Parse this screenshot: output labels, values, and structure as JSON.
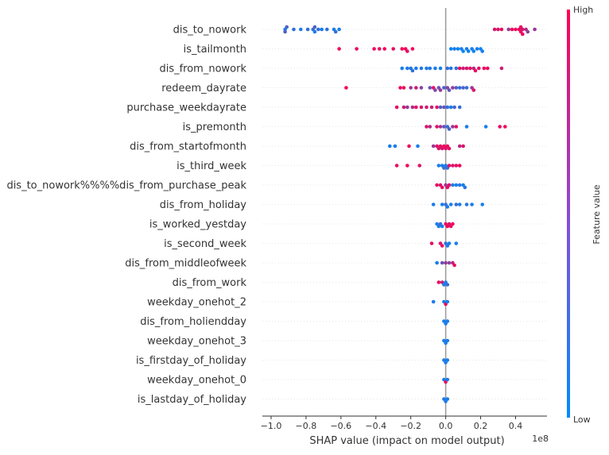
{
  "chart_data": {
    "type": "scatter",
    "subtype": "shap-beeswarm",
    "xlabel": "SHAP value (impact on model output)",
    "x_offset_label": "1e8",
    "xlim": [
      -1.05,
      0.58
    ],
    "x_ticks": [
      {
        "value": -1.0,
        "label": "−1.0"
      },
      {
        "value": -0.8,
        "label": "−0.8"
      },
      {
        "value": -0.6,
        "label": "−0.6"
      },
      {
        "value": -0.4,
        "label": "−0.4"
      },
      {
        "value": -0.2,
        "label": "−0.2"
      },
      {
        "value": 0.0,
        "label": "0.0"
      },
      {
        "value": 0.2,
        "label": "0.2"
      },
      {
        "value": 0.4,
        "label": "0.4"
      }
    ],
    "colorbar": {
      "title": "Feature value",
      "high": "High",
      "low": "Low"
    },
    "colors": {
      "low": "#008bfb",
      "high": "#ff0052",
      "zero_line": "#999999",
      "row_line": "#cccccc"
    },
    "features": [
      {
        "name": "dis_to_nowork",
        "points": [
          [
            -0.92,
            0.1
          ],
          [
            -0.92,
            0.3
          ],
          [
            -0.91,
            0.3
          ],
          [
            -0.87,
            0.2
          ],
          [
            -0.83,
            0.1
          ],
          [
            -0.79,
            0.2
          ],
          [
            -0.76,
            0.2
          ],
          [
            -0.75,
            0.1
          ],
          [
            -0.75,
            0.3
          ],
          [
            -0.73,
            0.2
          ],
          [
            -0.71,
            0.1
          ],
          [
            -0.68,
            0.2
          ],
          [
            -0.64,
            0.1
          ],
          [
            -0.63,
            0.2
          ],
          [
            -0.61,
            0.1
          ],
          [
            0.28,
            0.85
          ],
          [
            0.3,
            0.85
          ],
          [
            0.32,
            0.9
          ],
          [
            0.36,
            0.6
          ],
          [
            0.38,
            0.95
          ],
          [
            0.4,
            0.9
          ],
          [
            0.42,
            0.95
          ],
          [
            0.43,
            0.9
          ],
          [
            0.44,
            0.85
          ],
          [
            0.46,
            0.7
          ],
          [
            0.47,
            0.55
          ],
          [
            0.44,
            0.95
          ],
          [
            0.43,
            0.9
          ],
          [
            0.51,
            0.6
          ]
        ]
      },
      {
        "name": "is_tailmonth",
        "points": [
          [
            -0.61,
            0.95
          ],
          [
            -0.51,
            0.9
          ],
          [
            -0.41,
            0.95
          ],
          [
            -0.38,
            0.9
          ],
          [
            -0.35,
            0.95
          ],
          [
            -0.3,
            0.9
          ],
          [
            -0.25,
            0.95
          ],
          [
            -0.23,
            0.95
          ],
          [
            -0.22,
            0.9
          ],
          [
            -0.19,
            0.95
          ],
          [
            0.03,
            0.05
          ],
          [
            0.05,
            0.1
          ],
          [
            0.07,
            0.05
          ],
          [
            0.09,
            0.1
          ],
          [
            0.1,
            0.05
          ],
          [
            0.12,
            0.1
          ],
          [
            0.13,
            0.05
          ],
          [
            0.15,
            0.1
          ],
          [
            0.16,
            0.05
          ],
          [
            0.18,
            0.1
          ],
          [
            0.2,
            0.05
          ],
          [
            0.21,
            0.1
          ]
        ]
      },
      {
        "name": "dis_from_nowork",
        "points": [
          [
            -0.25,
            0.1
          ],
          [
            -0.22,
            0.1
          ],
          [
            -0.2,
            0.15
          ],
          [
            -0.19,
            0.2
          ],
          [
            -0.17,
            0.1
          ],
          [
            -0.14,
            0.15
          ],
          [
            -0.11,
            0.1
          ],
          [
            -0.09,
            0.15
          ],
          [
            -0.06,
            0.1
          ],
          [
            -0.03,
            0.1
          ],
          [
            0.01,
            0.2
          ],
          [
            0.03,
            0.15
          ],
          [
            0.06,
            0.2
          ],
          [
            0.08,
            0.9
          ],
          [
            0.1,
            0.8
          ],
          [
            0.12,
            0.85
          ],
          [
            0.14,
            0.9
          ],
          [
            0.16,
            0.7
          ],
          [
            0.17,
            0.9
          ],
          [
            0.19,
            0.9
          ],
          [
            0.22,
            0.9
          ],
          [
            0.24,
            0.95
          ],
          [
            0.32,
            0.8
          ]
        ]
      },
      {
        "name": "redeem_dayrate",
        "points": [
          [
            -0.57,
            0.95
          ],
          [
            -0.26,
            0.9
          ],
          [
            -0.24,
            0.95
          ],
          [
            -0.2,
            0.6
          ],
          [
            -0.17,
            0.8
          ],
          [
            -0.14,
            0.5
          ],
          [
            -0.09,
            0.4
          ],
          [
            -0.07,
            0.9
          ],
          [
            -0.06,
            0.5
          ],
          [
            -0.04,
            0.4
          ],
          [
            -0.03,
            0.6
          ],
          [
            -0.01,
            0.3
          ],
          [
            0.01,
            0.5
          ],
          [
            0.02,
            0.4
          ],
          [
            0.04,
            0.6
          ],
          [
            0.06,
            0.3
          ],
          [
            0.08,
            0.2
          ],
          [
            0.1,
            0.3
          ],
          [
            0.12,
            0.2
          ],
          [
            0.15,
            0.6
          ],
          [
            0.16,
            0.85
          ]
        ]
      },
      {
        "name": "purchase_weekdayrate",
        "points": [
          [
            -0.28,
            0.9
          ],
          [
            -0.24,
            0.8
          ],
          [
            -0.22,
            0.6
          ],
          [
            -0.19,
            0.7
          ],
          [
            -0.17,
            0.9
          ],
          [
            -0.14,
            0.85
          ],
          [
            -0.11,
            0.8
          ],
          [
            -0.08,
            0.8
          ],
          [
            -0.05,
            0.9
          ],
          [
            -0.03,
            0.3
          ],
          [
            -0.01,
            0.4
          ],
          [
            0.01,
            0.2
          ],
          [
            0.03,
            0.1
          ],
          [
            0.05,
            0.3
          ],
          [
            0.08,
            0.2
          ]
        ]
      },
      {
        "name": "is_premonth",
        "points": [
          [
            -0.11,
            0.85
          ],
          [
            -0.09,
            0.7
          ],
          [
            -0.05,
            0.9
          ],
          [
            -0.03,
            0.6
          ],
          [
            -0.01,
            0.4
          ],
          [
            0.01,
            0.2
          ],
          [
            0.02,
            0.3
          ],
          [
            0.04,
            0.6
          ],
          [
            0.06,
            0.9
          ],
          [
            0.12,
            0.1
          ],
          [
            0.23,
            0.1
          ],
          [
            0.31,
            0.9
          ],
          [
            0.34,
            0.95
          ]
        ]
      },
      {
        "name": "dis_from_startofmonth",
        "points": [
          [
            -0.32,
            0.1
          ],
          [
            -0.29,
            0.1
          ],
          [
            -0.21,
            0.95
          ],
          [
            -0.16,
            0.1
          ],
          [
            -0.07,
            0.6
          ],
          [
            -0.05,
            0.9
          ],
          [
            -0.04,
            0.85
          ],
          [
            -0.03,
            0.9
          ],
          [
            -0.02,
            0.8
          ],
          [
            -0.01,
            0.95
          ],
          [
            0.0,
            0.9
          ],
          [
            0.01,
            0.9
          ],
          [
            0.02,
            0.9
          ],
          [
            0.08,
            0.7
          ],
          [
            0.1,
            0.9
          ]
        ]
      },
      {
        "name": "is_third_week",
        "points": [
          [
            -0.28,
            0.9
          ],
          [
            -0.22,
            0.95
          ],
          [
            -0.15,
            0.85
          ],
          [
            -0.04,
            0.1
          ],
          [
            -0.02,
            0.1
          ],
          [
            -0.01,
            0.2
          ],
          [
            0.0,
            0.1
          ],
          [
            0.01,
            0.2
          ],
          [
            0.02,
            0.9
          ],
          [
            0.04,
            0.85
          ],
          [
            0.06,
            0.9
          ],
          [
            0.08,
            0.95
          ]
        ]
      },
      {
        "name": "dis_to_nowork%%%%dis_from_purchase_peak",
        "points": [
          [
            -0.05,
            0.9
          ],
          [
            -0.03,
            0.85
          ],
          [
            -0.02,
            0.9
          ],
          [
            0.0,
            0.6
          ],
          [
            0.01,
            0.9
          ],
          [
            0.02,
            0.9
          ],
          [
            0.04,
            0.1
          ],
          [
            0.06,
            0.1
          ],
          [
            0.08,
            0.1
          ],
          [
            0.1,
            0.1
          ],
          [
            0.11,
            0.15
          ]
        ]
      },
      {
        "name": "dis_from_holiday",
        "points": [
          [
            -0.07,
            0.1
          ],
          [
            -0.02,
            0.1
          ],
          [
            0.0,
            0.2
          ],
          [
            0.01,
            0.1
          ],
          [
            0.03,
            0.1
          ],
          [
            0.06,
            0.2
          ],
          [
            0.08,
            0.1
          ],
          [
            0.12,
            0.15
          ],
          [
            0.15,
            0.1
          ],
          [
            0.21,
            0.1
          ]
        ]
      },
      {
        "name": "is_worked_yestday",
        "points": [
          [
            -0.05,
            0.1
          ],
          [
            -0.04,
            0.1
          ],
          [
            -0.03,
            0.2
          ],
          [
            -0.02,
            0.1
          ],
          [
            0.0,
            0.9
          ],
          [
            0.01,
            0.95
          ],
          [
            0.02,
            0.85
          ],
          [
            0.03,
            0.9
          ],
          [
            0.04,
            0.95
          ]
        ]
      },
      {
        "name": "is_second_week",
        "points": [
          [
            -0.08,
            0.9
          ],
          [
            -0.03,
            0.85
          ],
          [
            -0.02,
            0.9
          ],
          [
            0.0,
            0.2
          ],
          [
            0.01,
            0.1
          ],
          [
            0.02,
            0.1
          ],
          [
            0.06,
            0.1
          ]
        ]
      },
      {
        "name": "dis_from_middleofweek",
        "points": [
          [
            -0.05,
            0.1
          ],
          [
            -0.02,
            0.4
          ],
          [
            0.0,
            0.6
          ],
          [
            0.02,
            0.5
          ],
          [
            0.04,
            0.8
          ],
          [
            0.05,
            0.9
          ]
        ]
      },
      {
        "name": "dis_from_work",
        "points": [
          [
            -0.04,
            0.9
          ],
          [
            -0.02,
            0.8
          ],
          [
            -0.01,
            0.1
          ],
          [
            0.0,
            0.1
          ],
          [
            0.01,
            0.2
          ]
        ]
      },
      {
        "name": "weekday_onehot_2",
        "points": [
          [
            -0.07,
            0.1
          ],
          [
            -0.01,
            0.1
          ],
          [
            0.0,
            0.9
          ],
          [
            0.01,
            0.1
          ]
        ]
      },
      {
        "name": "dis_from_holiendday",
        "points": [
          [
            -0.01,
            0.1
          ],
          [
            0.0,
            0.1
          ],
          [
            0.01,
            0.1
          ]
        ]
      },
      {
        "name": "weekday_onehot_3",
        "points": [
          [
            -0.01,
            0.1
          ],
          [
            0.0,
            0.1
          ],
          [
            0.01,
            0.1
          ]
        ]
      },
      {
        "name": "is_firstday_of_holiday",
        "points": [
          [
            -0.01,
            0.1
          ],
          [
            0.0,
            0.1
          ],
          [
            0.01,
            0.1
          ]
        ]
      },
      {
        "name": "weekday_onehot_0",
        "points": [
          [
            -0.01,
            0.1
          ],
          [
            0.0,
            0.9
          ],
          [
            0.01,
            0.1
          ]
        ]
      },
      {
        "name": "is_lastday_of_holiday",
        "points": [
          [
            -0.01,
            0.1
          ],
          [
            0.0,
            0.1
          ],
          [
            0.01,
            0.1
          ]
        ]
      }
    ]
  }
}
